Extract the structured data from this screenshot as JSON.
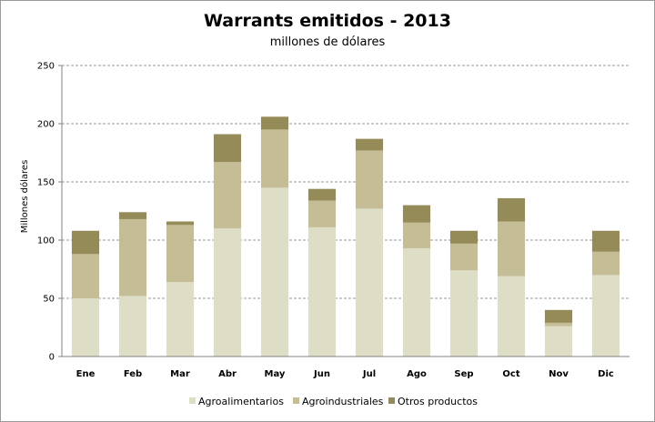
{
  "chart_data": {
    "type": "bar",
    "stacked": true,
    "title": "Warrants emitidos  - 2013",
    "subtitle": "millones de dólares",
    "ylabel": "Millones dólares",
    "xlabel": "",
    "ylim": [
      0,
      250
    ],
    "yticks": [
      "0",
      "50",
      "100",
      "150",
      "200",
      "250"
    ],
    "categories": [
      "Ene",
      "Feb",
      "Mar",
      "Abr",
      "May",
      "Jun",
      "Jul",
      "Ago",
      "Sep",
      "Oct",
      "Nov",
      "Dic"
    ],
    "series": [
      {
        "name": "Agroalimentarios",
        "color": "#deddc6",
        "values": [
          50,
          52,
          64,
          110,
          145,
          111,
          127,
          93,
          74,
          69,
          26,
          70
        ]
      },
      {
        "name": "Agroindustriales",
        "color": "#c5bd96",
        "values": [
          38,
          66,
          49,
          57,
          50,
          23,
          50,
          22,
          23,
          47,
          3,
          20
        ]
      },
      {
        "name": "Otros productos",
        "color": "#958b58",
        "values": [
          20,
          6,
          3,
          24,
          11,
          10,
          10,
          15,
          11,
          20,
          11,
          18
        ]
      }
    ],
    "grid": true,
    "legend_position": "bottom"
  }
}
